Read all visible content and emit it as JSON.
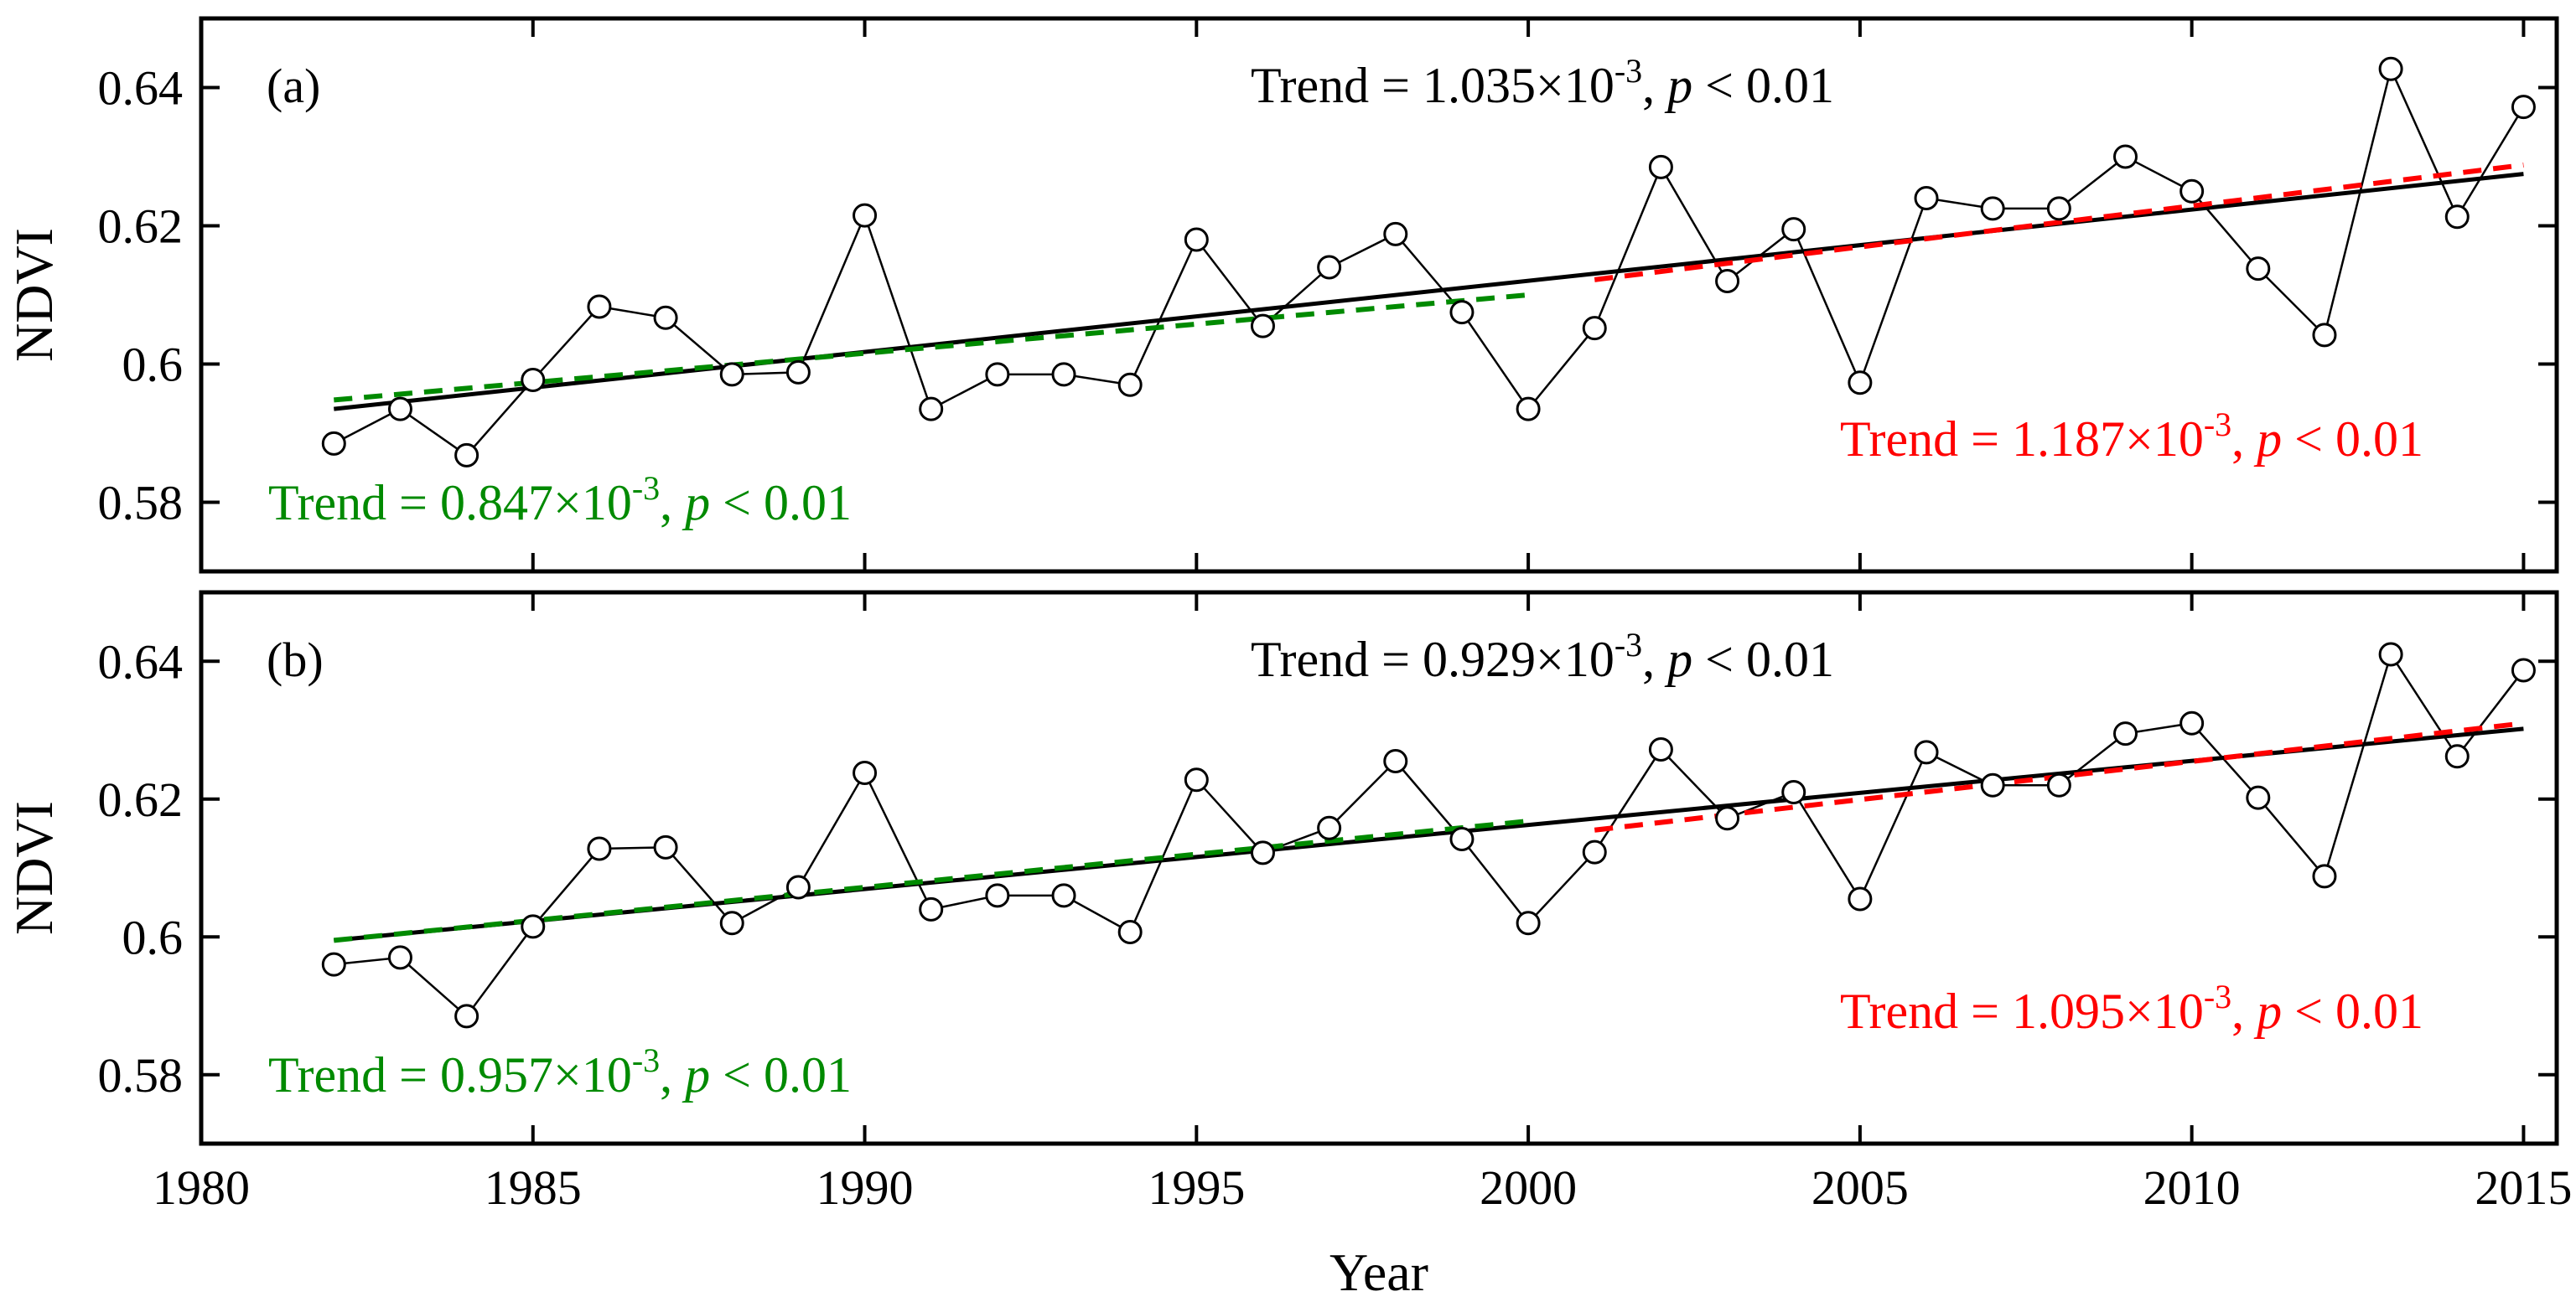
{
  "chart_data": {
    "type": "line",
    "xlabel": "Year",
    "x_ticks": [
      "1980",
      "1985",
      "1990",
      "1995",
      "2000",
      "2005",
      "2010",
      "2015"
    ],
    "xlim": [
      1980,
      2015.5
    ],
    "years": [
      1982,
      1983,
      1984,
      1985,
      1986,
      1987,
      1988,
      1989,
      1990,
      1991,
      1992,
      1993,
      1994,
      1995,
      1996,
      1997,
      1998,
      1999,
      2000,
      2001,
      2002,
      2003,
      2004,
      2005,
      2006,
      2007,
      2008,
      2009,
      2010,
      2011,
      2012,
      2013,
      2014,
      2015
    ],
    "colors": {
      "overall": "#000000",
      "early": "#008a00",
      "late": "#ff0000",
      "series": "#000000"
    },
    "panels": [
      {
        "label": "(a)",
        "ylabel": "NDVI",
        "ylim": [
          0.57,
          0.65
        ],
        "y_ticks": [
          "0.58",
          "0.6",
          "0.62",
          "0.64"
        ],
        "series": [
          {
            "values": [
              0.5885,
              0.5935,
              0.5868,
              0.5977,
              0.6083,
              0.6067,
              0.5985,
              0.5988,
              0.6215,
              0.5935,
              0.5985,
              0.5985,
              0.597,
              0.618,
              0.6055,
              0.614,
              0.6188,
              0.6075,
              0.5935,
              0.6052,
              0.6285,
              0.612,
              0.6195,
              0.5973,
              0.624,
              0.6225,
              0.6225,
              0.63,
              0.625,
              0.6138,
              0.6042,
              0.6427,
              0.6213,
              0.6372
            ]
          }
        ],
        "trends": [
          {
            "period": "overall",
            "x": [
              1982,
              2015
            ],
            "y": [
              0.5935,
              0.6275
            ],
            "text_main": "Trend = 1.035×10",
            "exp": "-3",
            "text_tail": "p < 0.01"
          },
          {
            "period": "early",
            "x": [
              1982,
              2000
            ],
            "y": [
              0.5948,
              0.61
            ],
            "text_main": "Trend = 0.847×10",
            "exp": "-3",
            "text_tail": "p < 0.01"
          },
          {
            "period": "late",
            "x": [
              2001,
              2015
            ],
            "y": [
              0.6122,
              0.6288
            ],
            "text_main": "Trend = 1.187×10",
            "exp": "-3",
            "text_tail": "p < 0.01"
          }
        ]
      },
      {
        "label": "(b)",
        "ylabel": "NDVI",
        "ylim": [
          0.57,
          0.65
        ],
        "y_ticks": [
          "0.58",
          "0.6",
          "0.62",
          "0.64"
        ],
        "series": [
          {
            "values": [
              0.596,
              0.597,
              0.5885,
              0.6015,
              0.6128,
              0.613,
              0.602,
              0.6072,
              0.6238,
              0.604,
              0.606,
              0.606,
              0.6007,
              0.6228,
              0.6122,
              0.6158,
              0.6255,
              0.6142,
              0.602,
              0.6123,
              0.6272,
              0.6172,
              0.621,
              0.6055,
              0.6268,
              0.622,
              0.622,
              0.6295,
              0.631,
              0.6202,
              0.6088,
              0.641,
              0.6262,
              0.6387
            ]
          }
        ],
        "trends": [
          {
            "period": "overall",
            "x": [
              1982,
              2015
            ],
            "y": [
              0.5995,
              0.6302
            ],
            "text_main": "Trend = 0.929×10",
            "exp": "-3",
            "text_tail": "p < 0.01"
          },
          {
            "period": "early",
            "x": [
              1982,
              2000
            ],
            "y": [
              0.5995,
              0.6168
            ],
            "text_main": "Trend = 0.957×10",
            "exp": "-3",
            "text_tail": "p < 0.01"
          },
          {
            "period": "late",
            "x": [
              2001,
              2015
            ],
            "y": [
              0.6155,
              0.631
            ],
            "text_main": "Trend = 1.095×10",
            "exp": "-3",
            "text_tail": "p < 0.01"
          }
        ]
      }
    ]
  }
}
